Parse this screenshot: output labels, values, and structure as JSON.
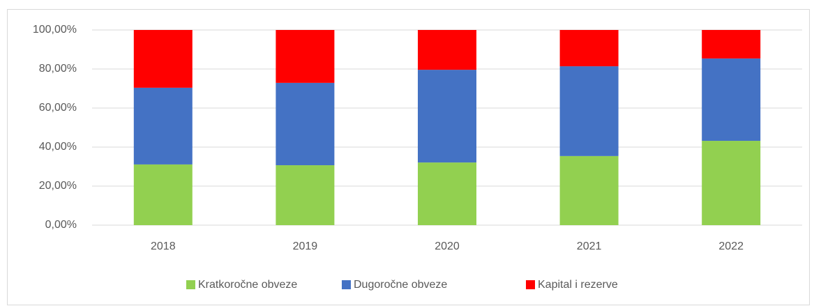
{
  "chart_data": {
    "type": "stacked_bar",
    "categories": [
      "2018",
      "2019",
      "2020",
      "2021",
      "2022"
    ],
    "series": [
      {
        "name": "Kratkoročne obveze",
        "color": "#92d050",
        "values": [
          31.1,
          30.7,
          32.1,
          35.4,
          43.2
        ]
      },
      {
        "name": "Dugoročne obveze",
        "color": "#4472c4",
        "values": [
          39.3,
          42.2,
          47.5,
          46.0,
          42.2
        ]
      },
      {
        "name": "Kapital i rezerve",
        "color": "#ff0000",
        "values": [
          29.6,
          27.1,
          20.4,
          18.6,
          14.6
        ]
      }
    ],
    "ylim": [
      0,
      100
    ],
    "yticks": [
      {
        "value": 0,
        "label": "0,00%"
      },
      {
        "value": 20,
        "label": "20,00%"
      },
      {
        "value": 40,
        "label": "40,00%"
      },
      {
        "value": 60,
        "label": "60,00%"
      },
      {
        "value": 80,
        "label": "80,00%"
      },
      {
        "value": 100,
        "label": "100,00%"
      }
    ],
    "grid": true,
    "legend": "bottom"
  }
}
